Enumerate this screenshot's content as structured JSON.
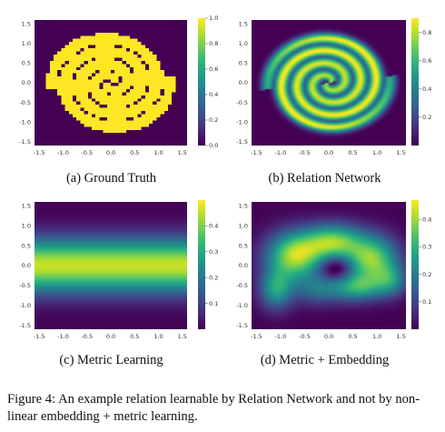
{
  "figure": {
    "caption_label": "Figure 4:",
    "caption_text": "An example relation learnable by Relation Network and not by non-linear embedding + metric learning."
  },
  "colormap": "viridis",
  "colors": {
    "low": "#440154",
    "mid": "#21918c",
    "high": "#fde725"
  },
  "panels": [
    {
      "id": "a",
      "subcaption": "(a) Ground Truth",
      "heatmap": "two interleaved spiral arms of value 1.0 on background 0.0",
      "xticks": [
        "-1.5",
        "-1.0",
        "-0.5",
        "0.0",
        "0.5",
        "1.0",
        "1.5"
      ],
      "yticks": [
        "1.5",
        "1.0",
        "0.5",
        "0.0",
        "-0.5",
        "-1.0",
        "-1.5"
      ],
      "colorbar_ticks": [
        "1.0",
        "0.8",
        "0.6",
        "0.4",
        "0.2",
        "0.0"
      ],
      "colorbar_range": [
        0,
        1.0
      ]
    },
    {
      "id": "b",
      "subcaption": "(b) Relation Network",
      "heatmap": "smoothed spiral arms",
      "xticks": [
        "-1.5",
        "-1.0",
        "-0.5",
        "0.0",
        "0.5",
        "1.0",
        "1.5"
      ],
      "yticks": [
        "1.5",
        "1.0",
        "0.5",
        "0.0",
        "-0.5",
        "-1.0",
        "-1.5"
      ],
      "colorbar_ticks": [
        "0.8",
        "0.6",
        "0.4",
        "0.2"
      ],
      "colorbar_range": [
        0,
        0.9
      ]
    },
    {
      "id": "c",
      "subcaption": "(c) Metric Learning",
      "heatmap": "horizontal band peaking at y = 0",
      "xticks": [
        "-1.5",
        "-1.0",
        "-0.5",
        "0.0",
        "0.5",
        "1.0",
        "1.5"
      ],
      "yticks": [
        "1.5",
        "1.0",
        "0.5",
        "0.0",
        "-0.5",
        "-1.0",
        "-1.5"
      ],
      "colorbar_ticks": [
        "0.4",
        "0.3",
        "0.2",
        "0.1"
      ],
      "colorbar_range": [
        0,
        0.5
      ]
    },
    {
      "id": "d",
      "subcaption": "(d) Metric + Embedding",
      "heatmap": "blurred arch-shaped blobs",
      "xticks": [
        "-1.5",
        "-1.0",
        "-0.5",
        "0.0",
        "0.5",
        "1.0",
        "1.5"
      ],
      "yticks": [
        "1.5",
        "1.0",
        "0.5",
        "0.0",
        "-0.5",
        "-1.0",
        "-1.5"
      ],
      "colorbar_ticks": [
        "0.4",
        "0.3",
        "0.2",
        "0.1"
      ],
      "colorbar_range": [
        0,
        0.47
      ]
    }
  ]
}
